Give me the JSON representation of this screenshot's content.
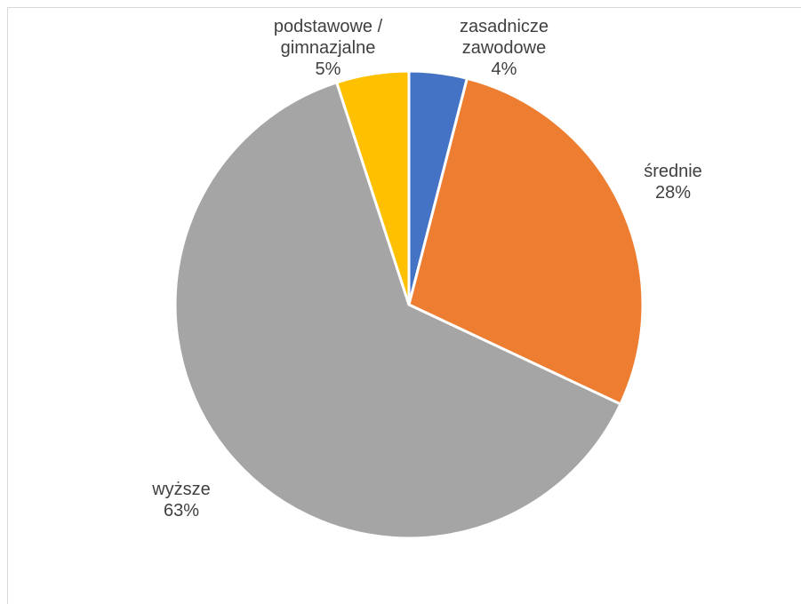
{
  "chart_data": {
    "type": "pie",
    "slices": [
      {
        "label": [
          "zasadnicze",
          "zawodowe"
        ],
        "value": 4,
        "value_label": "4%",
        "color": "#4472c4"
      },
      {
        "label": [
          "średnie"
        ],
        "value": 28,
        "value_label": "28%",
        "color": "#ed7d31"
      },
      {
        "label": [
          "wyższe"
        ],
        "value": 63,
        "value_label": "63%",
        "color": "#a5a5a5"
      },
      {
        "label": [
          "podstawowe /",
          "gimnazjalne"
        ],
        "value": 5,
        "value_label": "5%",
        "color": "#ffc000"
      }
    ],
    "start_angle_deg": 0,
    "direction": "clockwise",
    "slice_border_color": "#ffffff",
    "labels_outside_for": [
      "zasadnicze zawodowe",
      "podstawowe / gimnazjalne"
    ]
  }
}
